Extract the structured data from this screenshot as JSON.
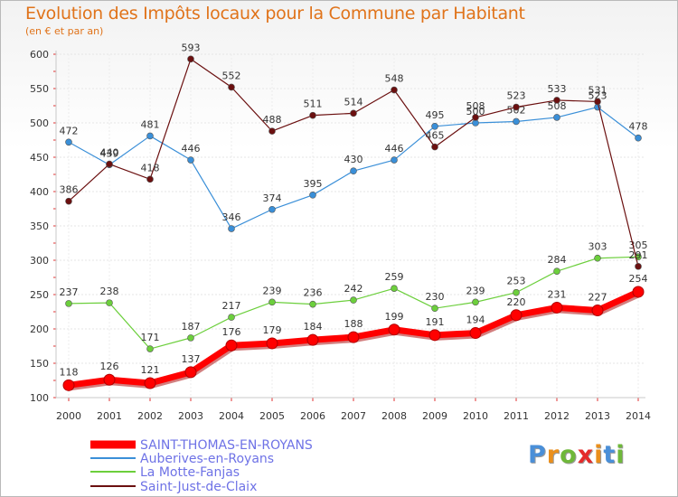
{
  "chart_data": {
    "type": "line",
    "title": "Evolution des Impôts locaux pour la Commune par Habitant",
    "subtitle": "(en € et par an)",
    "categories": [
      "2000",
      "2001",
      "2002",
      "2003",
      "2004",
      "2005",
      "2006",
      "2007",
      "2008",
      "2009",
      "2010",
      "2011",
      "2012",
      "2013",
      "2014"
    ],
    "ylim": [
      100,
      600
    ],
    "yticks": [
      100,
      150,
      200,
      250,
      300,
      350,
      400,
      450,
      500,
      550,
      600
    ],
    "grid": true,
    "legend_position": "bottom-left",
    "series": [
      {
        "name": "SAINT-THOMAS-EN-ROYANS",
        "color": "#ff0000",
        "values": [
          118,
          126,
          121,
          137,
          176,
          179,
          184,
          188,
          199,
          191,
          194,
          220,
          231,
          227,
          254
        ]
      },
      {
        "name": "Auberives-en-Royans",
        "color": "#3a8fd8",
        "values": [
          472,
          439,
          481,
          446,
          346,
          374,
          395,
          430,
          446,
          495,
          500,
          502,
          508,
          523,
          478
        ]
      },
      {
        "name": "La Motte-Fanjas",
        "color": "#6ccf3c",
        "values": [
          237,
          238,
          171,
          187,
          217,
          239,
          236,
          242,
          259,
          230,
          239,
          253,
          284,
          303,
          305
        ]
      },
      {
        "name": "Saint-Just-de-Claix",
        "color": "#6b1010",
        "values": [
          386,
          440,
          418,
          593,
          552,
          488,
          511,
          514,
          548,
          465,
          508,
          523,
          533,
          531,
          291
        ]
      }
    ]
  },
  "logo": {
    "letters": [
      "P",
      "r",
      "o",
      "x",
      "i",
      "t",
      "i"
    ],
    "colors": [
      "#4a8fd8",
      "#ea8f1c",
      "#6fb83a",
      "#e52a2a",
      "#ea8f1c",
      "#4a8fd8",
      "#6fb83a"
    ]
  }
}
